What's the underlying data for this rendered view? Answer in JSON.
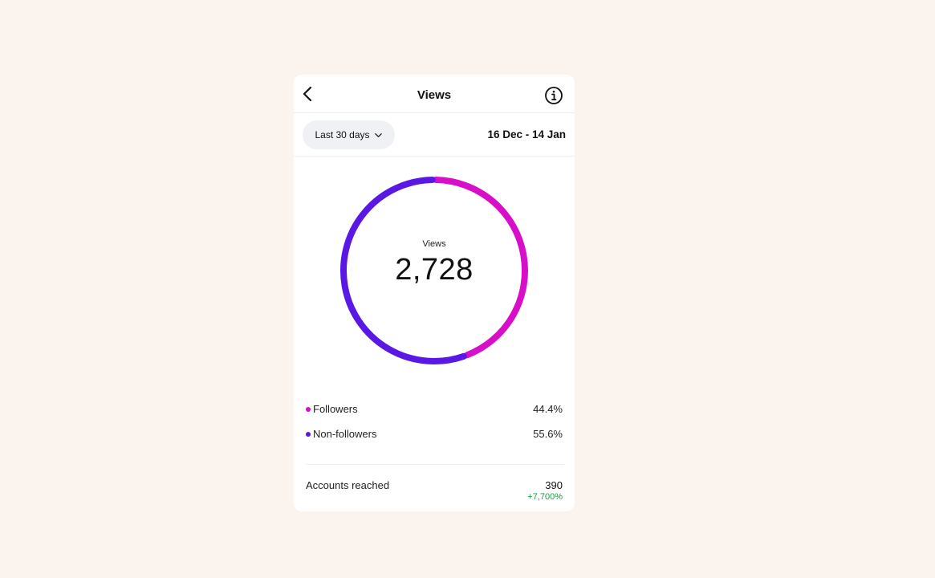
{
  "header": {
    "title": "Views"
  },
  "filter": {
    "range_label": "Last 30 days",
    "date_range": "16 Dec - 14 Jan"
  },
  "summary": {
    "center_label": "Views",
    "total": "2,728"
  },
  "chart_data": {
    "type": "pie",
    "categories": [
      "Followers",
      "Non-followers"
    ],
    "values": [
      44.4,
      55.6
    ],
    "colors": [
      "#d70fc8",
      "#5a18e4"
    ]
  },
  "legend": [
    {
      "label": "Followers",
      "value": "44.4%",
      "color": "#d70fc8"
    },
    {
      "label": "Non-followers",
      "value": "55.6%",
      "color": "#5a18e4"
    }
  ],
  "reached": {
    "label": "Accounts reached",
    "value": "390",
    "change": "+7,700%"
  },
  "icons": {
    "back": "chevron-left-icon",
    "info": "info-icon",
    "dropdown": "chevron-down-icon"
  }
}
